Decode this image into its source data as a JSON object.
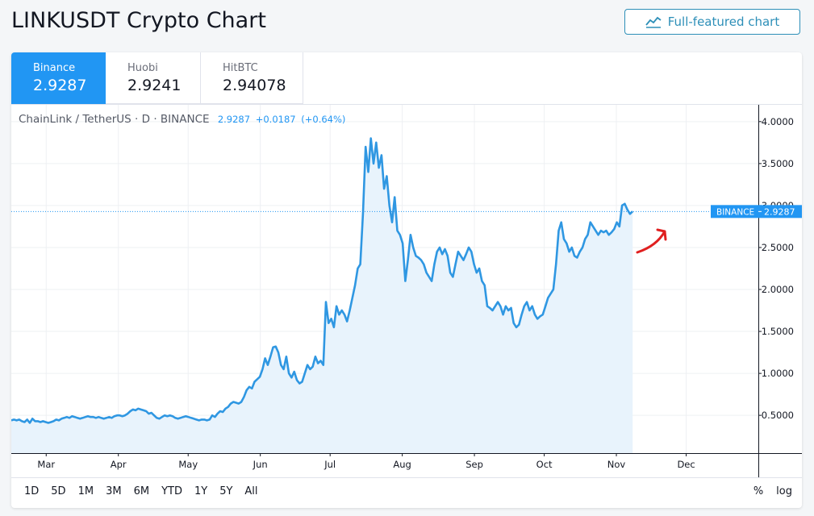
{
  "page": {
    "title": "LINKUSDT Crypto Chart",
    "full_chart_label": "Full-featured chart"
  },
  "tabs": [
    {
      "exchange": "Binance",
      "price": "2.9287",
      "active": true
    },
    {
      "exchange": "Huobi",
      "price": "2.9241",
      "active": false
    },
    {
      "exchange": "HitBTC",
      "price": "2.94078",
      "active": false
    }
  ],
  "legend": {
    "symbol": "ChainLink / TetherUS · D · BINANCE",
    "last": "2.9287",
    "change": "+0.0187",
    "change_pct": "(+0.64%)"
  },
  "ranges": [
    "1D",
    "5D",
    "1M",
    "3M",
    "6M",
    "YTD",
    "1Y",
    "5Y",
    "All"
  ],
  "scale_options": [
    "%",
    "log"
  ],
  "colors": {
    "line": "#2f97e2",
    "area": "#e8f3fc",
    "accent": "#2196f3",
    "annotation": "#e02020",
    "button": "#2d8fb8"
  },
  "chart_data": {
    "type": "area",
    "ylim": [
      0.05,
      4.2
    ],
    "yticks": [
      "4.0000",
      "3.5000",
      "3.0000",
      "2.5000",
      "2.0000",
      "1.5000",
      "1.0000",
      "0.5000"
    ],
    "ytick_values": [
      4.0,
      3.5,
      3.0,
      2.5,
      2.0,
      1.5,
      1.0,
      0.5
    ],
    "x_month_labels": [
      "Mar",
      "Apr",
      "May",
      "Jun",
      "Jul",
      "Aug",
      "Sep",
      "Oct",
      "Nov",
      "Dec"
    ],
    "x_month_start_days": [
      60,
      91,
      121,
      152,
      182,
      213,
      244,
      274,
      305,
      335
    ],
    "x_range_days": [
      45,
      366
    ],
    "price_line": {
      "label": "BINANCE",
      "value": 2.9287,
      "text": "2.9287"
    },
    "grid": true,
    "series": [
      {
        "day_start": 45,
        "day_end": 312,
        "values": [
          0.44,
          0.45,
          0.44,
          0.45,
          0.43,
          0.42,
          0.45,
          0.41,
          0.46,
          0.43,
          0.43,
          0.42,
          0.43,
          0.42,
          0.41,
          0.42,
          0.43,
          0.45,
          0.44,
          0.46,
          0.47,
          0.48,
          0.47,
          0.49,
          0.48,
          0.47,
          0.46,
          0.47,
          0.48,
          0.49,
          0.48,
          0.48,
          0.47,
          0.48,
          0.47,
          0.46,
          0.47,
          0.48,
          0.47,
          0.49,
          0.5,
          0.5,
          0.49,
          0.5,
          0.52,
          0.55,
          0.57,
          0.56,
          0.58,
          0.57,
          0.56,
          0.55,
          0.52,
          0.53,
          0.5,
          0.47,
          0.46,
          0.48,
          0.5,
          0.49,
          0.5,
          0.49,
          0.47,
          0.46,
          0.47,
          0.48,
          0.49,
          0.48,
          0.47,
          0.46,
          0.45,
          0.44,
          0.45,
          0.45,
          0.44,
          0.45,
          0.5,
          0.48,
          0.52,
          0.55,
          0.54,
          0.58,
          0.6,
          0.64,
          0.66,
          0.65,
          0.64,
          0.66,
          0.72,
          0.8,
          0.84,
          0.82,
          0.9,
          0.93,
          0.96,
          1.05,
          1.18,
          1.1,
          1.2,
          1.31,
          1.32,
          1.25,
          1.1,
          1.05,
          1.2,
          1.0,
          0.95,
          1.02,
          0.92,
          0.88,
          0.9,
          1.0,
          1.1,
          1.05,
          1.08,
          1.2,
          1.12,
          1.15,
          1.1,
          1.85,
          1.6,
          1.65,
          1.55,
          1.8,
          1.7,
          1.75,
          1.7,
          1.62,
          1.75,
          1.9,
          2.05,
          2.25,
          2.3,
          2.9,
          3.7,
          3.4,
          3.8,
          3.5,
          3.75,
          3.45,
          3.6,
          3.2,
          3.35,
          3.0,
          2.8,
          3.1,
          2.7,
          2.65,
          2.55,
          2.1,
          2.35,
          2.65,
          2.5,
          2.4,
          2.38,
          2.35,
          2.3,
          2.2,
          2.15,
          2.1,
          2.3,
          2.45,
          2.5,
          2.42,
          2.48,
          2.4,
          2.2,
          2.15,
          2.3,
          2.45,
          2.4,
          2.35,
          2.42,
          2.5,
          2.45,
          2.3,
          2.2,
          2.25,
          2.1,
          2.05,
          1.8,
          1.78,
          1.75,
          1.8,
          1.85,
          1.8,
          1.7,
          1.8,
          1.75,
          1.78,
          1.6,
          1.55,
          1.58,
          1.7,
          1.8,
          1.85,
          1.75,
          1.8,
          1.7,
          1.65,
          1.68,
          1.7,
          1.8,
          1.9,
          1.95,
          2.0,
          2.3,
          2.7,
          2.8,
          2.6,
          2.55,
          2.45,
          2.5,
          2.4,
          2.38,
          2.45,
          2.5,
          2.6,
          2.65,
          2.8,
          2.75,
          2.7,
          2.65,
          2.7,
          2.68,
          2.7,
          2.65,
          2.68,
          2.72,
          2.8,
          2.75,
          3.0,
          3.02,
          2.95,
          2.9,
          2.93
        ]
      }
    ]
  }
}
